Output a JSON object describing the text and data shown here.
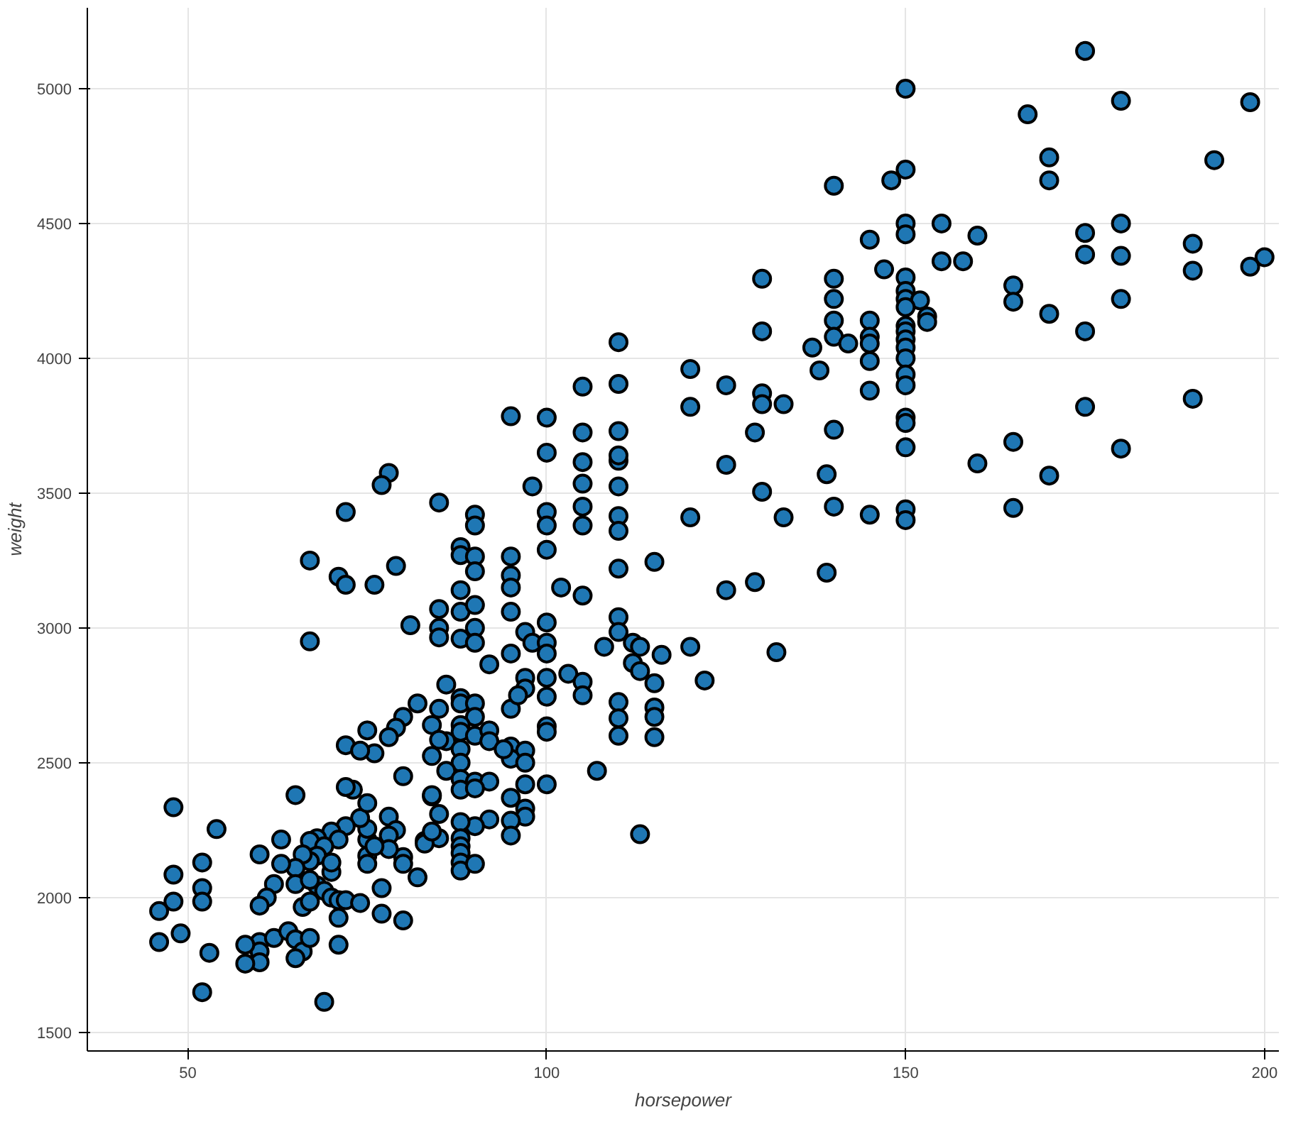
{
  "chart_data": {
    "type": "scatter",
    "xlabel": "horsepower",
    "ylabel": "weight",
    "xlim": [
      36,
      202
    ],
    "ylim": [
      1431,
      5300
    ],
    "xticks": [
      50,
      100,
      150,
      200
    ],
    "yticks": [
      1500,
      2000,
      2500,
      3000,
      3500,
      4000,
      4500,
      5000
    ],
    "grid": true,
    "marker": "circle",
    "series": [
      {
        "color": "#1f77b4",
        "x": [
          175,
          150,
          180,
          198,
          167,
          170,
          193,
          150,
          170,
          148,
          140,
          175,
          180,
          155,
          150,
          160,
          190,
          145,
          175,
          180,
          200,
          198,
          190,
          147,
          150,
          158,
          155,
          150,
          140,
          130,
          150,
          150,
          152,
          140,
          165,
          165,
          180,
          150,
          153,
          153,
          145,
          150,
          140,
          150,
          170,
          175,
          140,
          145,
          142,
          150,
          110,
          130,
          145,
          150,
          137,
          120,
          145,
          150,
          138,
          110,
          105,
          125,
          150,
          150,
          145,
          130,
          130,
          133,
          120,
          175,
          190,
          150,
          150,
          140,
          129,
          110,
          105,
          95,
          100,
          150,
          160,
          165,
          180,
          170,
          125,
          139,
          110,
          105,
          100,
          110,
          78,
          77,
          98,
          130,
          105,
          140,
          110,
          85,
          133,
          150,
          150,
          145,
          165,
          120,
          100,
          105,
          110,
          105,
          100,
          72,
          90,
          90,
          110,
          95,
          88,
          88,
          90,
          139,
          129,
          115,
          110,
          79,
          67,
          71,
          72,
          76,
          100,
          95,
          95,
          102,
          105,
          125,
          90,
          88,
          85,
          88,
          90,
          95,
          100,
          81,
          85,
          90,
          88,
          85,
          67,
          97,
          98,
          100,
          100,
          110,
          110,
          112,
          113,
          108,
          132,
          120,
          116,
          112,
          113,
          115,
          122,
          95,
          92,
          97,
          100,
          103,
          105,
          97,
          90,
          86,
          88,
          88,
          82,
          85,
          95,
          96,
          90,
          90,
          100,
          110,
          115,
          105,
          107,
          110,
          115,
          110,
          115,
          113,
          80,
          79,
          75,
          84,
          88,
          88,
          86,
          90,
          92,
          92,
          95,
          97,
          100,
          100,
          95,
          97,
          94,
          97,
          100,
          72,
          76,
          74,
          78,
          85,
          88,
          88,
          86,
          84,
          84,
          80,
          78,
          73,
          88,
          90,
          92,
          95,
          97,
          97,
          95,
          95,
          92,
          90,
          88,
          85,
          83,
          85,
          88,
          88,
          88,
          88,
          88,
          90,
          82,
          80,
          80,
          79,
          78,
          78,
          75,
          75,
          75,
          75,
          74,
          72,
          70,
          68,
          67,
          71,
          69,
          68,
          67,
          66,
          65,
          65,
          63,
          63,
          62,
          61,
          60,
          60,
          60,
          60,
          60,
          58,
          58,
          62,
          64,
          65,
          66,
          67,
          65,
          66,
          67,
          68,
          69,
          70,
          70,
          70,
          71,
          71,
          71,
          72,
          74,
          67,
          69,
          65,
          52,
          52,
          52,
          53,
          52,
          54,
          49,
          48,
          48,
          48,
          46,
          46,
          75,
          76,
          77,
          77,
          80,
          83,
          84,
          84,
          72,
          88,
          90
        ],
        "values": [
          5140,
          5000,
          4955,
          4950,
          4905,
          4745,
          4735,
          4700,
          4660,
          4660,
          4640,
          4465,
          4500,
          4500,
          4500,
          4455,
          4425,
          4440,
          4385,
          4380,
          4375,
          4340,
          4325,
          4330,
          4460,
          4360,
          4360,
          4300,
          4295,
          4295,
          4250,
          4220,
          4215,
          4220,
          4270,
          4210,
          4220,
          4190,
          4155,
          4135,
          4140,
          4120,
          4140,
          4100,
          4165,
          4100,
          4080,
          4080,
          4055,
          4070,
          4060,
          4100,
          4055,
          4040,
          4040,
          3960,
          3990,
          4000,
          3955,
          3905,
          3895,
          3900,
          3940,
          3900,
          3880,
          3870,
          3830,
          3830,
          3820,
          3820,
          3850,
          3780,
          3760,
          3735,
          3725,
          3730,
          3725,
          3785,
          3780,
          3670,
          3610,
          3690,
          3665,
          3565,
          3605,
          3570,
          3620,
          3615,
          3650,
          3640,
          3575,
          3530,
          3525,
          3505,
          3535,
          3450,
          3525,
          3465,
          3410,
          3440,
          3400,
          3420,
          3445,
          3410,
          3430,
          3450,
          3415,
          3380,
          3380,
          3430,
          3420,
          3380,
          3360,
          3265,
          3300,
          3270,
          3265,
          3205,
          3170,
          3245,
          3220,
          3230,
          3250,
          3190,
          3160,
          3160,
          3290,
          3195,
          3150,
          3150,
          3120,
          3140,
          3210,
          3140,
          3070,
          3060,
          3085,
          3060,
          3020,
          3010,
          3000,
          3000,
          2960,
          2965,
          2950,
          2985,
          2945,
          2945,
          2905,
          3040,
          2985,
          2945,
          2930,
          2930,
          2910,
          2930,
          2900,
          2870,
          2840,
          2795,
          2805,
          2905,
          2865,
          2815,
          2815,
          2830,
          2800,
          2775,
          2945,
          2790,
          2740,
          2720,
          2720,
          2700,
          2700,
          2750,
          2720,
          2670,
          2745,
          2725,
          2705,
          2750,
          2470,
          2665,
          2670,
          2600,
          2595,
          2235,
          2670,
          2630,
          2620,
          2640,
          2640,
          2615,
          2580,
          2600,
          2620,
          2580,
          2560,
          2545,
          2635,
          2615,
          2515,
          2500,
          2550,
          2420,
          2420,
          2565,
          2535,
          2545,
          2595,
          2585,
          2550,
          2500,
          2470,
          2525,
          2375,
          2450,
          2300,
          2400,
          2440,
          2430,
          2430,
          2370,
          2330,
          2300,
          2285,
          2230,
          2290,
          2265,
          2280,
          2310,
          2210,
          2220,
          2220,
          2190,
          2165,
          2130,
          2100,
          2125,
          2075,
          2150,
          2125,
          2250,
          2230,
          2180,
          2215,
          2255,
          2155,
          2125,
          2295,
          2265,
          2245,
          2220,
          2210,
          2215,
          2190,
          2155,
          2135,
          2160,
          2110,
          2050,
          2215,
          2125,
          2050,
          2000,
          2160,
          1970,
          1835,
          1800,
          1760,
          1755,
          1825,
          1850,
          1875,
          1845,
          1800,
          1850,
          1775,
          1965,
          1985,
          2045,
          2025,
          2000,
          2095,
          2130,
          1990,
          1925,
          1825,
          1990,
          1980,
          2065,
          1613,
          2380,
          2130,
          2035,
          1985,
          1795,
          1649,
          2254,
          1867,
          2335,
          2085,
          1985,
          1950,
          1835,
          2350,
          2190,
          2035,
          1940,
          1915,
          2200,
          2380,
          2245,
          2410,
          2400,
          2405
        ]
      }
    ]
  }
}
